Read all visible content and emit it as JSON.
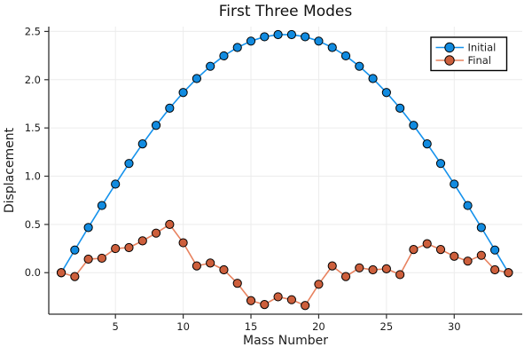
{
  "window": {
    "background": "#ffffff"
  },
  "chart_data": {
    "type": "line",
    "title": "First Three Modes",
    "xlabel": "Mass Number",
    "ylabel": "Displacement",
    "grid": true,
    "legend_position": "top-right",
    "xlim": [
      0.08,
      35.02
    ],
    "ylim": [
      -0.43,
      2.55
    ],
    "xticks": [
      5,
      10,
      15,
      20,
      25,
      30
    ],
    "ytick_labels": [
      "0.0",
      "0.5",
      "1.0",
      "1.5",
      "2.0",
      "2.5"
    ],
    "ytick_values": [
      0,
      0.5,
      1.0,
      1.5,
      2.0,
      2.5
    ],
    "x": [
      1,
      2,
      3,
      4,
      5,
      6,
      7,
      8,
      9,
      10,
      11,
      12,
      13,
      14,
      15,
      16,
      17,
      18,
      19,
      20,
      21,
      22,
      23,
      24,
      25,
      26,
      27,
      28,
      29,
      30,
      31,
      32,
      33,
      34
    ],
    "series": [
      {
        "name": "Initial",
        "line_color": "#1592EC",
        "marker_color": "#118BE0",
        "marker": "circle",
        "values": [
          0.0,
          0.235,
          0.468,
          0.696,
          0.918,
          1.132,
          1.335,
          1.527,
          1.705,
          1.867,
          2.012,
          2.139,
          2.247,
          2.334,
          2.4,
          2.445,
          2.467,
          2.467,
          2.445,
          2.4,
          2.334,
          2.247,
          2.139,
          2.012,
          1.867,
          1.705,
          1.527,
          1.335,
          1.132,
          0.918,
          0.696,
          0.468,
          0.235,
          0.0
        ]
      },
      {
        "name": "Final",
        "line_color": "#E8825F",
        "marker_color": "#CD5F3C",
        "marker": "circle",
        "values": [
          0.0,
          -0.04,
          0.14,
          0.15,
          0.25,
          0.26,
          0.33,
          0.41,
          0.5,
          0.31,
          0.07,
          0.1,
          0.03,
          -0.11,
          -0.29,
          -0.33,
          -0.25,
          -0.28,
          -0.34,
          -0.12,
          0.07,
          -0.04,
          0.05,
          0.03,
          0.04,
          -0.02,
          0.24,
          0.3,
          0.24,
          0.17,
          0.12,
          0.18,
          0.03,
          0.0
        ]
      }
    ],
    "legend": {
      "entries": [
        "Initial",
        "Final"
      ],
      "border_color": "#000000",
      "background": "#ffffff"
    },
    "axis_color": "#2f2f2f",
    "grid_color": "#ececec",
    "text_color": "#1c1c1c"
  }
}
